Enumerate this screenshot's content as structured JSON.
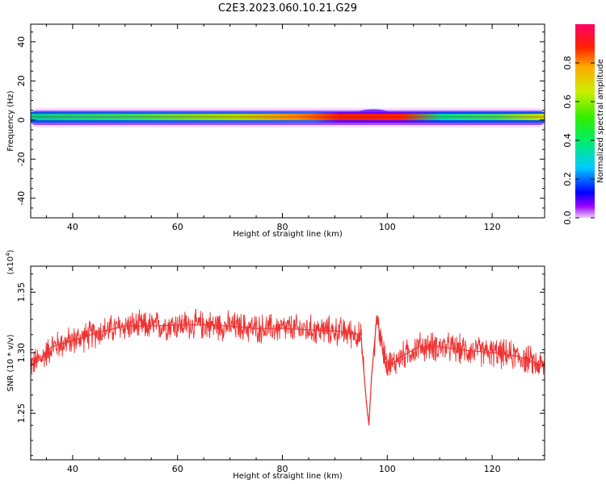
{
  "title": "C2E3.2023.060.10.21.G29",
  "chart_data": [
    {
      "type": "heatmap",
      "xlabel": "Height of straight line (km)",
      "ylabel": "Frequency (Hz)",
      "xlim": [
        32,
        130
      ],
      "ylim": [
        -50,
        49
      ],
      "xticks": [
        "40",
        "60",
        "80",
        "100",
        "120"
      ],
      "yticks": [
        "40",
        "20",
        "0",
        "-20",
        "-40"
      ],
      "colorbar": {
        "label": "Normalized spectral amplitude",
        "range": [
          0,
          1
        ],
        "ticks": [
          "0.0",
          "0.2",
          "0.4",
          "0.6",
          "0.8"
        ]
      },
      "band": {
        "center_hz": 1,
        "core_halfwidth_hz": 2.5,
        "peak_amplitude_height_km": [
          80,
          100
        ],
        "extra_lobe_km": [
          93,
          97
        ]
      }
    },
    {
      "type": "line",
      "xlabel": "Height of straight line (km)",
      "ylabel": "SNR (10 * v/v)",
      "scale_label": "(x10^4)",
      "scale_base": "(x10",
      "scale_exp": "4",
      "scale_close": ")",
      "xlim": [
        32,
        130
      ],
      "ylim": [
        1.2115,
        1.3715
      ],
      "xticks": [
        "40",
        "60",
        "80",
        "100",
        "120"
      ],
      "yticks": [
        "1.25",
        "1.30",
        "1.35"
      ],
      "color": "#ee3333",
      "series": [
        {
          "x": [
            32,
            34,
            36,
            40,
            45,
            50,
            55,
            60,
            65,
            70,
            75,
            80,
            85,
            90,
            94,
            95,
            96,
            96.5,
            97,
            98,
            99,
            100,
            101,
            102,
            104,
            106,
            110,
            115,
            120,
            125,
            128,
            130
          ],
          "y": [
            1.29,
            1.295,
            1.305,
            1.31,
            1.317,
            1.322,
            1.322,
            1.323,
            1.323,
            1.322,
            1.32,
            1.32,
            1.319,
            1.318,
            1.316,
            1.312,
            1.26,
            1.24,
            1.28,
            1.33,
            1.305,
            1.292,
            1.29,
            1.295,
            1.3,
            1.305,
            1.305,
            1.302,
            1.3,
            1.297,
            1.292,
            1.288
          ]
        }
      ]
    }
  ]
}
